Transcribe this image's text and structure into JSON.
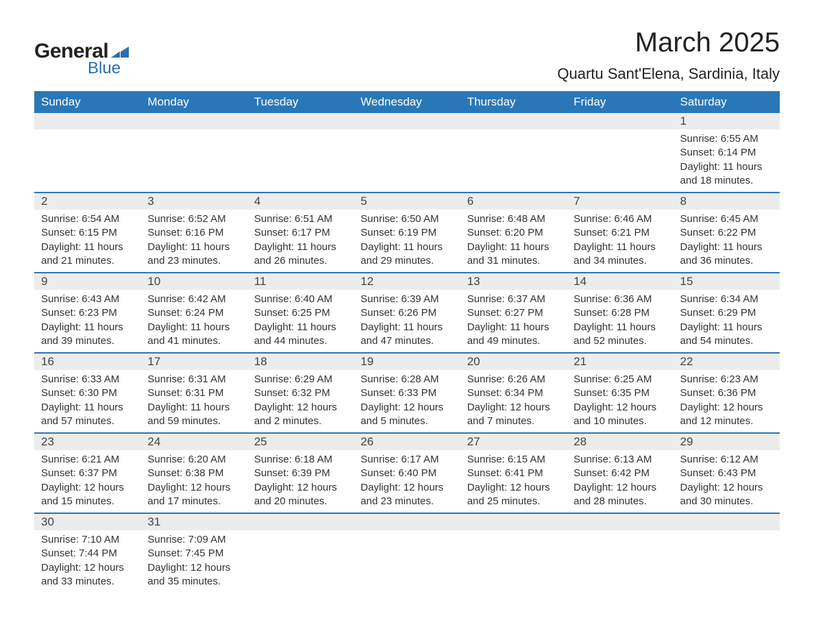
{
  "logo": {
    "text_general": "General",
    "text_blue": "Blue",
    "shape_color": "#2a6fad"
  },
  "title": "March 2025",
  "location": "Quartu Sant'Elena, Sardinia, Italy",
  "colors": {
    "header_bg": "#2a77b8",
    "header_text": "#ffffff",
    "row_border": "#2a77b8",
    "daynum_bg": "#ececec",
    "body_text": "#333333",
    "page_bg": "#ffffff"
  },
  "typography": {
    "title_fontsize": 40,
    "location_fontsize": 22,
    "header_fontsize": 17,
    "daynum_fontsize": 17,
    "detail_fontsize": 15
  },
  "weekdays": [
    "Sunday",
    "Monday",
    "Tuesday",
    "Wednesday",
    "Thursday",
    "Friday",
    "Saturday"
  ],
  "weeks": [
    {
      "nums": [
        "",
        "",
        "",
        "",
        "",
        "",
        "1"
      ],
      "details": [
        "",
        "",
        "",
        "",
        "",
        "",
        "Sunrise: 6:55 AM\nSunset: 6:14 PM\nDaylight: 11 hours and 18 minutes."
      ]
    },
    {
      "nums": [
        "2",
        "3",
        "4",
        "5",
        "6",
        "7",
        "8"
      ],
      "details": [
        "Sunrise: 6:54 AM\nSunset: 6:15 PM\nDaylight: 11 hours and 21 minutes.",
        "Sunrise: 6:52 AM\nSunset: 6:16 PM\nDaylight: 11 hours and 23 minutes.",
        "Sunrise: 6:51 AM\nSunset: 6:17 PM\nDaylight: 11 hours and 26 minutes.",
        "Sunrise: 6:50 AM\nSunset: 6:19 PM\nDaylight: 11 hours and 29 minutes.",
        "Sunrise: 6:48 AM\nSunset: 6:20 PM\nDaylight: 11 hours and 31 minutes.",
        "Sunrise: 6:46 AM\nSunset: 6:21 PM\nDaylight: 11 hours and 34 minutes.",
        "Sunrise: 6:45 AM\nSunset: 6:22 PM\nDaylight: 11 hours and 36 minutes."
      ]
    },
    {
      "nums": [
        "9",
        "10",
        "11",
        "12",
        "13",
        "14",
        "15"
      ],
      "details": [
        "Sunrise: 6:43 AM\nSunset: 6:23 PM\nDaylight: 11 hours and 39 minutes.",
        "Sunrise: 6:42 AM\nSunset: 6:24 PM\nDaylight: 11 hours and 41 minutes.",
        "Sunrise: 6:40 AM\nSunset: 6:25 PM\nDaylight: 11 hours and 44 minutes.",
        "Sunrise: 6:39 AM\nSunset: 6:26 PM\nDaylight: 11 hours and 47 minutes.",
        "Sunrise: 6:37 AM\nSunset: 6:27 PM\nDaylight: 11 hours and 49 minutes.",
        "Sunrise: 6:36 AM\nSunset: 6:28 PM\nDaylight: 11 hours and 52 minutes.",
        "Sunrise: 6:34 AM\nSunset: 6:29 PM\nDaylight: 11 hours and 54 minutes."
      ]
    },
    {
      "nums": [
        "16",
        "17",
        "18",
        "19",
        "20",
        "21",
        "22"
      ],
      "details": [
        "Sunrise: 6:33 AM\nSunset: 6:30 PM\nDaylight: 11 hours and 57 minutes.",
        "Sunrise: 6:31 AM\nSunset: 6:31 PM\nDaylight: 11 hours and 59 minutes.",
        "Sunrise: 6:29 AM\nSunset: 6:32 PM\nDaylight: 12 hours and 2 minutes.",
        "Sunrise: 6:28 AM\nSunset: 6:33 PM\nDaylight: 12 hours and 5 minutes.",
        "Sunrise: 6:26 AM\nSunset: 6:34 PM\nDaylight: 12 hours and 7 minutes.",
        "Sunrise: 6:25 AM\nSunset: 6:35 PM\nDaylight: 12 hours and 10 minutes.",
        "Sunrise: 6:23 AM\nSunset: 6:36 PM\nDaylight: 12 hours and 12 minutes."
      ]
    },
    {
      "nums": [
        "23",
        "24",
        "25",
        "26",
        "27",
        "28",
        "29"
      ],
      "details": [
        "Sunrise: 6:21 AM\nSunset: 6:37 PM\nDaylight: 12 hours and 15 minutes.",
        "Sunrise: 6:20 AM\nSunset: 6:38 PM\nDaylight: 12 hours and 17 minutes.",
        "Sunrise: 6:18 AM\nSunset: 6:39 PM\nDaylight: 12 hours and 20 minutes.",
        "Sunrise: 6:17 AM\nSunset: 6:40 PM\nDaylight: 12 hours and 23 minutes.",
        "Sunrise: 6:15 AM\nSunset: 6:41 PM\nDaylight: 12 hours and 25 minutes.",
        "Sunrise: 6:13 AM\nSunset: 6:42 PM\nDaylight: 12 hours and 28 minutes.",
        "Sunrise: 6:12 AM\nSunset: 6:43 PM\nDaylight: 12 hours and 30 minutes."
      ]
    },
    {
      "nums": [
        "30",
        "31",
        "",
        "",
        "",
        "",
        ""
      ],
      "details": [
        "Sunrise: 7:10 AM\nSunset: 7:44 PM\nDaylight: 12 hours and 33 minutes.",
        "Sunrise: 7:09 AM\nSunset: 7:45 PM\nDaylight: 12 hours and 35 minutes.",
        "",
        "",
        "",
        "",
        ""
      ]
    }
  ]
}
